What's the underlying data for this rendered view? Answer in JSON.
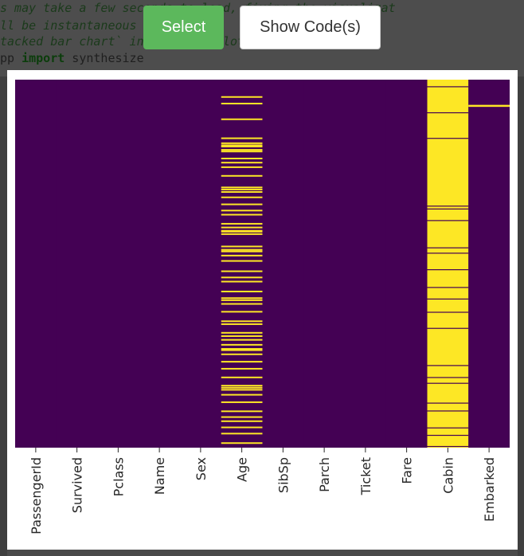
{
  "background_code": {
    "line1": "s may take a few seconds to load, fixing the visualizat",
    "line2": "ll be instantaneous",
    "line3": "tacked bar chart` in which to plot the results.",
    "line4_prefix": "pp ",
    "line4_keyword": "import",
    "line4_suffix": " synthesize"
  },
  "toolbar": {
    "select_label": "Select",
    "show_code_label": "Show Code(s)"
  },
  "chart_data": {
    "type": "heatmap",
    "title": "",
    "xlabel": "",
    "ylabel": "",
    "colormap": "viridis",
    "colors": {
      "present": "#440154",
      "missing": "#fde725"
    },
    "columns": [
      "PassengerId",
      "Survived",
      "Pclass",
      "Name",
      "Sex",
      "Age",
      "SibSp",
      "Parch",
      "Ticket",
      "Fare",
      "Cabin",
      "Embarked"
    ],
    "row_count": 891,
    "missing_counts": [
      0,
      0,
      0,
      0,
      0,
      177,
      0,
      0,
      0,
      0,
      687,
      2
    ],
    "missing_rows": {
      "Age": [
        40,
        56,
        94,
        140,
        152,
        157,
        160,
        168,
        172,
        189,
        199,
        210,
        231,
        259,
        264,
        270,
        283,
        300,
        315,
        325,
        347,
        356,
        364,
        366,
        372,
        402,
        410,
        414,
        424,
        437,
        462,
        477,
        487,
        511,
        527,
        532,
        541,
        560,
        583,
        590,
        611,
        619,
        628,
        640,
        650,
        653,
        663,
        681,
        698,
        719,
        739,
        744,
        749,
        761,
        779,
        801,
        815,
        825,
        840,
        855,
        878
      ],
      "Cabin": [],
      "Embarked": [
        61,
        62
      ]
    },
    "cabin_present_rows": [
      16,
      79,
      141,
      305,
      312,
      340,
      406,
      419,
      459,
      502,
      530,
      562,
      601,
      691,
      720,
      734,
      782,
      801,
      842,
      860,
      887
    ]
  }
}
